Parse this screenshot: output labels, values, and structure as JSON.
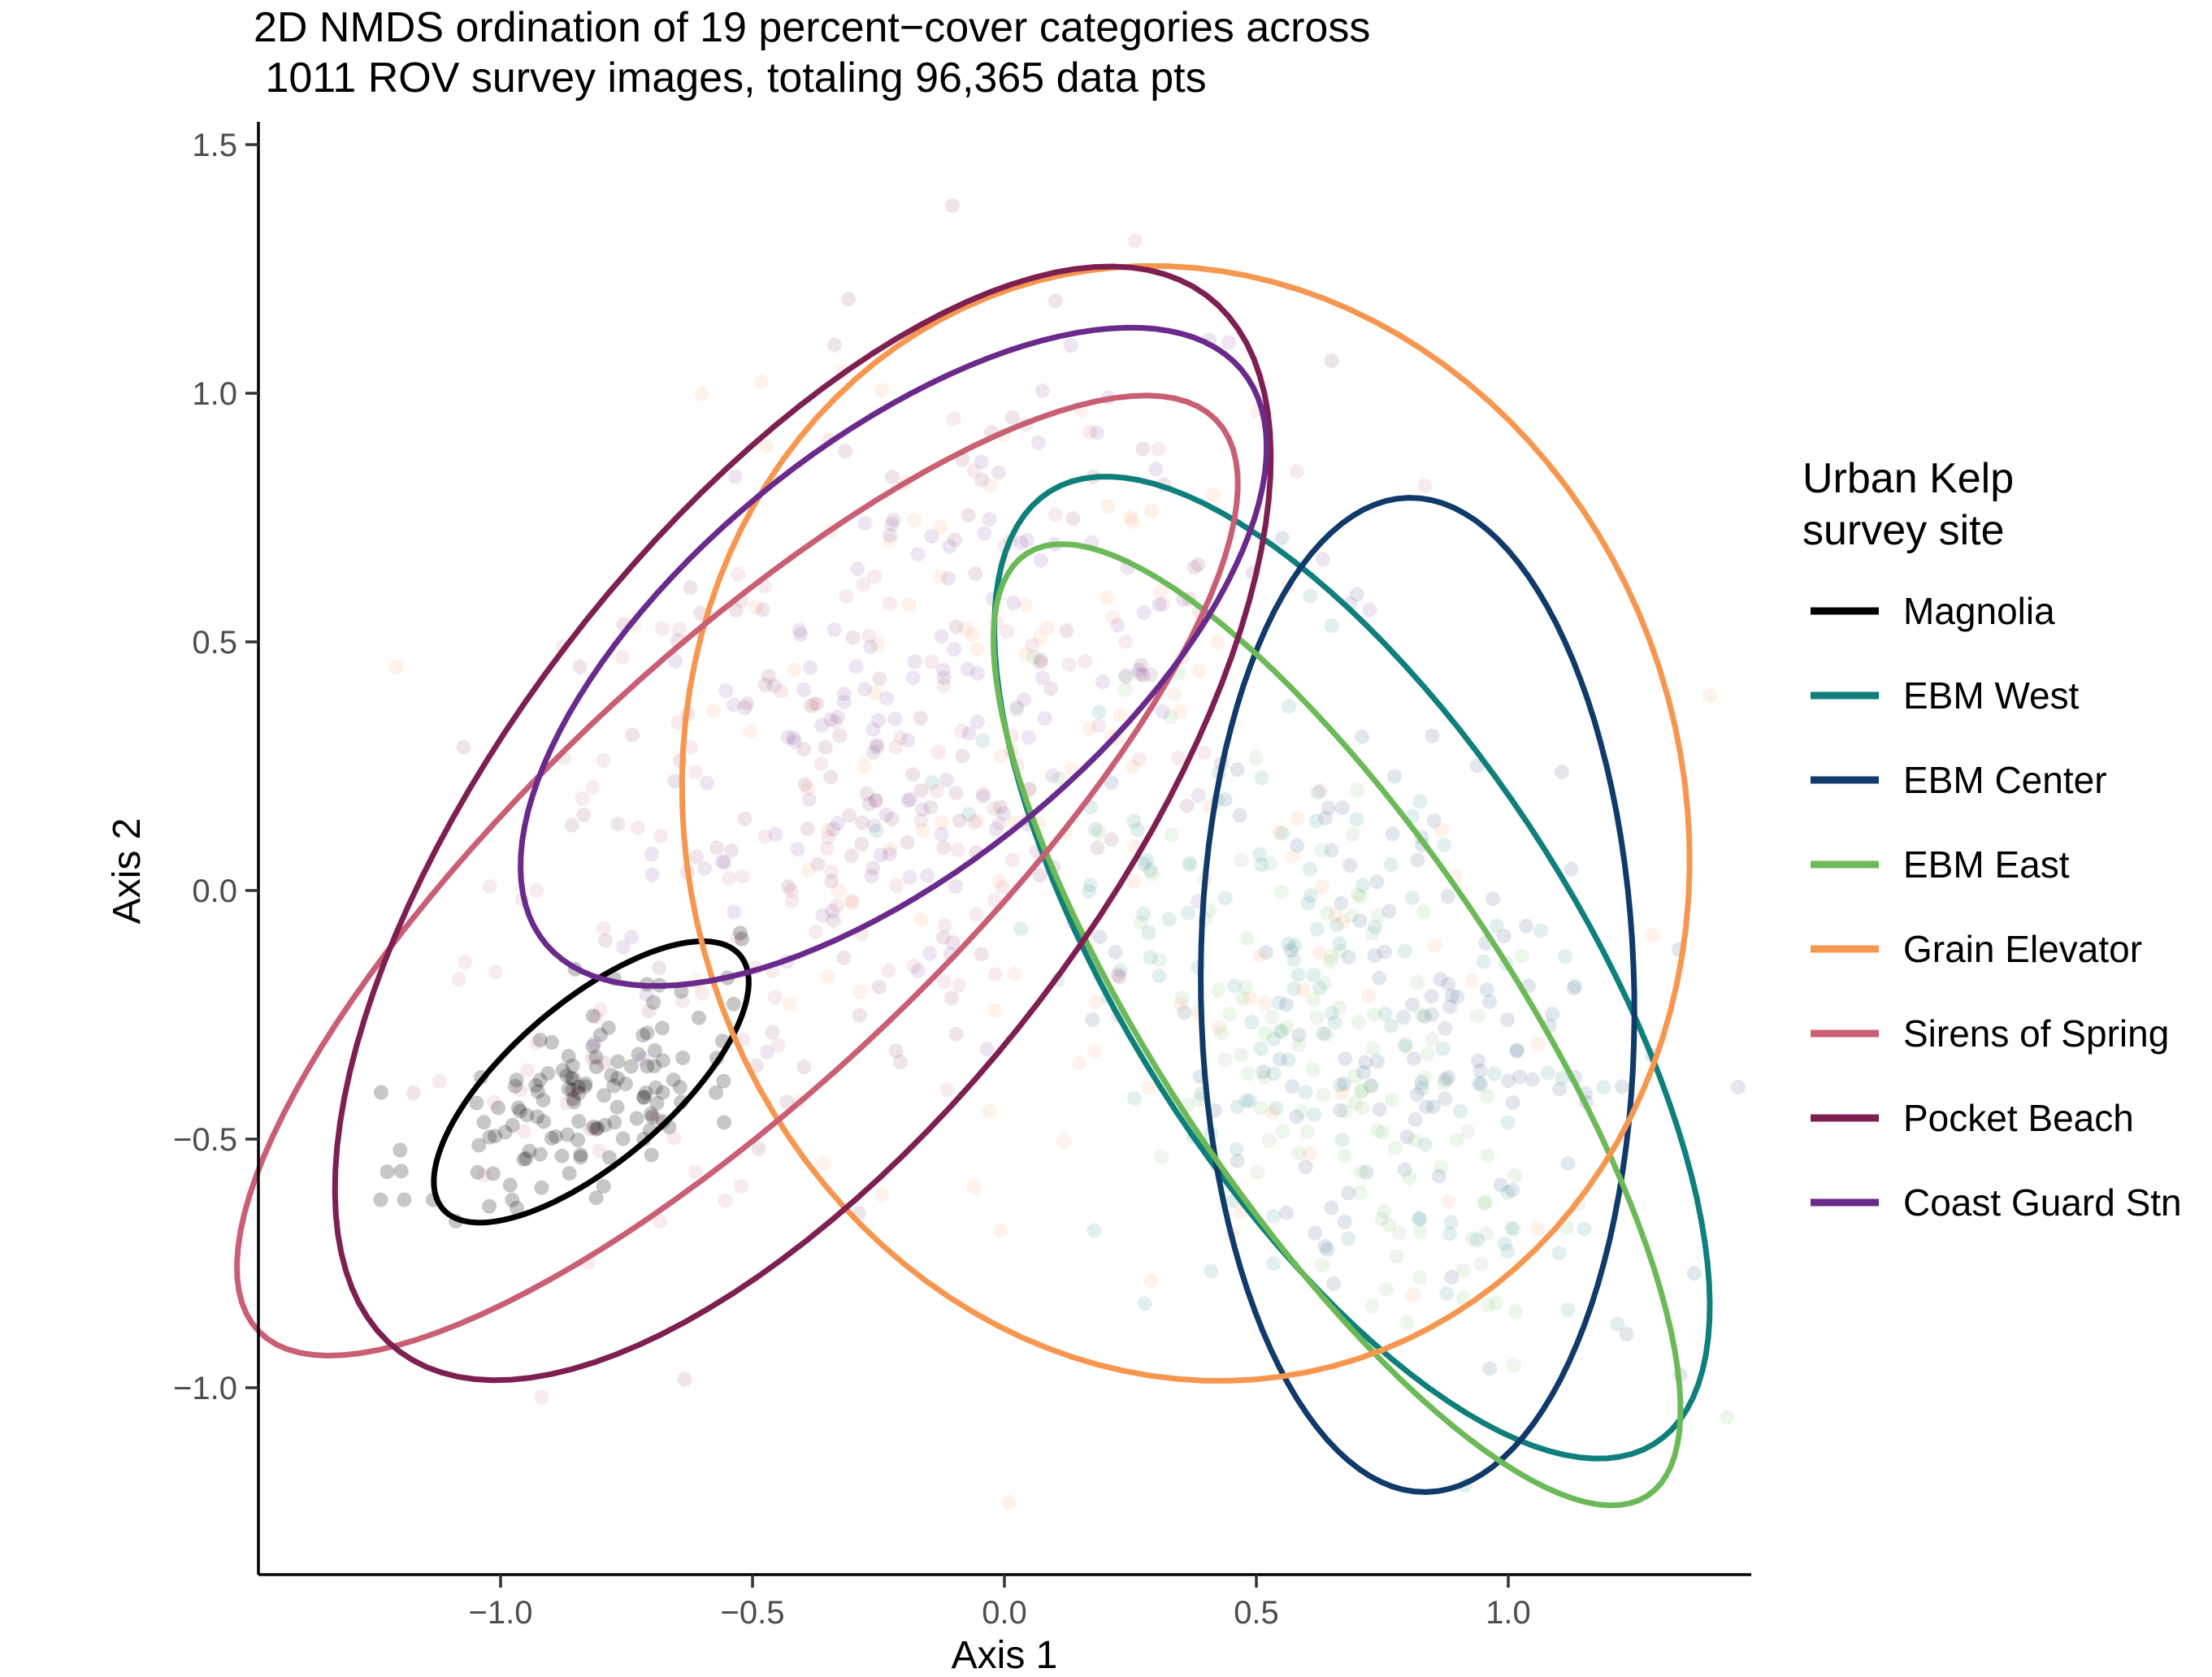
{
  "chart_data": {
    "type": "scatter",
    "title_lines": [
      "2D NMDS ordination of 19 percent−cover categories across",
      " 1011 ROV survey images, totaling 96,365 data pts"
    ],
    "xlabel": "Axis 1",
    "ylabel": "Axis 2",
    "xlim": [
      -1.5,
      1.5
    ],
    "ylim": [
      -1.35,
      1.55
    ],
    "x_ticks": [
      -1.0,
      -0.5,
      0.0,
      0.5,
      1.0
    ],
    "x_tick_labels": [
      "−1.0",
      "−0.5",
      "0.0",
      "0.5",
      "1.0"
    ],
    "y_ticks": [
      -1.0,
      -0.5,
      0.0,
      0.5,
      1.0,
      1.5
    ],
    "y_tick_labels": [
      "−1.0",
      "−0.5",
      "0.0",
      "0.5",
      "1.0",
      "1.5"
    ],
    "grid": false,
    "legend": {
      "title_lines": [
        "Urban Kelp",
        "survey site"
      ],
      "placement": "right"
    },
    "series": [
      {
        "name": "Magnolia",
        "color": "#000000",
        "ellipse": {
          "cx": -0.82,
          "cy": -0.385,
          "a": 0.39,
          "b": 0.16,
          "angle_deg": 41
        },
        "cloud": {
          "cx": -0.85,
          "cy": -0.42,
          "sx": 0.16,
          "sy": 0.13,
          "rho": 0.6
        }
      },
      {
        "name": "EBM West",
        "color": "#0e7f7a",
        "ellipse": {
          "cx": 0.69,
          "cy": -0.155,
          "a": 1.13,
          "b": 0.45,
          "angle_deg": -58
        },
        "cloud": {
          "cx": 0.65,
          "cy": -0.25,
          "sx": 0.32,
          "sy": 0.35,
          "rho": -0.5
        }
      },
      {
        "name": "EBM Center",
        "color": "#0f3a69",
        "ellipse": {
          "cx": 0.82,
          "cy": -0.21,
          "a": 1.0,
          "b": 0.43,
          "angle_deg": -89
        },
        "cloud": {
          "cx": 0.82,
          "cy": -0.25,
          "sx": 0.25,
          "sy": 0.32,
          "rho": -0.3
        }
      },
      {
        "name": "EBM East",
        "color": "#6cb958",
        "ellipse": {
          "cx": 0.66,
          "cy": -0.27,
          "a": 1.13,
          "b": 0.35,
          "angle_deg": -57
        },
        "cloud": {
          "cx": 0.7,
          "cy": -0.35,
          "sx": 0.25,
          "sy": 0.3,
          "rho": -0.55
        }
      },
      {
        "name": "Grain Elevator",
        "color": "#f7964f",
        "ellipse": {
          "cx": 0.36,
          "cy": 0.135,
          "a": 1.13,
          "b": 0.99,
          "angle_deg": -75
        },
        "cloud": {
          "cx": 0.1,
          "cy": 0.2,
          "sx": 0.45,
          "sy": 0.45,
          "rho": -0.2
        }
      },
      {
        "name": "Sirens of Spring",
        "color": "#c95e74",
        "ellipse": {
          "cx": -0.53,
          "cy": 0.03,
          "a": 1.32,
          "b": 0.42,
          "angle_deg": 44
        },
        "cloud": {
          "cx": -0.3,
          "cy": 0.15,
          "sx": 0.4,
          "sy": 0.4,
          "rho": 0.5
        }
      },
      {
        "name": "Pocket Beach",
        "color": "#7e1f52",
        "ellipse": {
          "cx": -0.4,
          "cy": 0.135,
          "a": 1.33,
          "b": 0.59,
          "angle_deg": 53
        },
        "cloud": {
          "cx": -0.25,
          "cy": 0.25,
          "sx": 0.4,
          "sy": 0.42,
          "rho": 0.45
        }
      },
      {
        "name": "Coast Guard Stn",
        "color": "#6a2a8c",
        "ellipse": {
          "cx": -0.22,
          "cy": 0.47,
          "a": 0.9,
          "b": 0.42,
          "angle_deg": 40
        },
        "cloud": {
          "cx": -0.15,
          "cy": 0.35,
          "sx": 0.3,
          "sy": 0.3,
          "rho": 0.45
        }
      }
    ]
  }
}
